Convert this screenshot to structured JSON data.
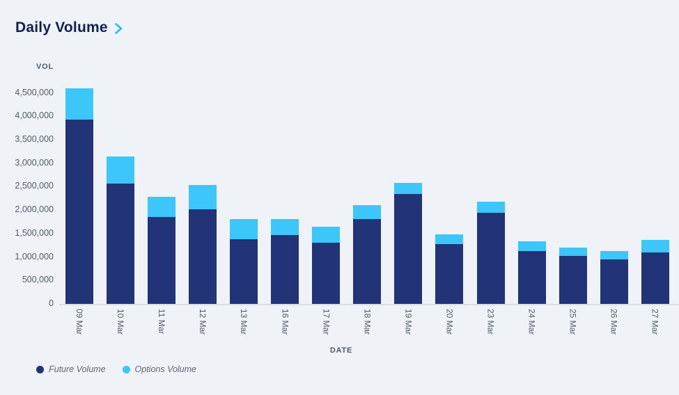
{
  "header": {
    "title": "Daily Volume"
  },
  "chart_data": {
    "type": "bar",
    "stacked": true,
    "title": "Daily Volume",
    "xlabel": "DATE",
    "ylabel": "VOL",
    "ylim": [
      0,
      4600000
    ],
    "grid": false,
    "legend_position": "bottom-left",
    "categories": [
      "09 Mar",
      "10 Mar",
      "11 Mar",
      "12 Mar",
      "13 Mar",
      "16 Mar",
      "17 Mar",
      "18 Mar",
      "19 Mar",
      "20 Mar",
      "23 Mar",
      "24 Mar",
      "25 Mar",
      "26 Mar",
      "27 Mar"
    ],
    "series": [
      {
        "name": "Future Volume",
        "color": "#223377",
        "values": [
          3930000,
          2570000,
          1860000,
          2020000,
          1380000,
          1470000,
          1310000,
          1810000,
          2350000,
          1270000,
          1950000,
          1130000,
          1020000,
          950000,
          1100000
        ]
      },
      {
        "name": "Options Volume",
        "color": "#3dc6fa",
        "values": [
          670000,
          570000,
          430000,
          510000,
          430000,
          340000,
          330000,
          300000,
          230000,
          210000,
          230000,
          210000,
          180000,
          180000,
          260000
        ]
      }
    ],
    "y_ticks": {
      "values": [
        0,
        500000,
        1000000,
        1500000,
        2000000,
        2500000,
        3000000,
        3500000,
        4000000,
        4500000
      ],
      "labels": [
        "0",
        "500,000",
        "1,000,000",
        "1,500,000",
        "2,000,000",
        "2,500,000",
        "3,000,000",
        "3,500,000",
        "4,000,000",
        "4,500,000"
      ]
    }
  },
  "colors": {
    "background": "#eff2f6",
    "future": "#223377",
    "options": "#3dc6fa",
    "title": "#0f2150",
    "chevron": "#2db6f2",
    "axis_text": "#4f5b6a",
    "axis_line": "#d9dde2",
    "legend_text": "#5c6672"
  }
}
